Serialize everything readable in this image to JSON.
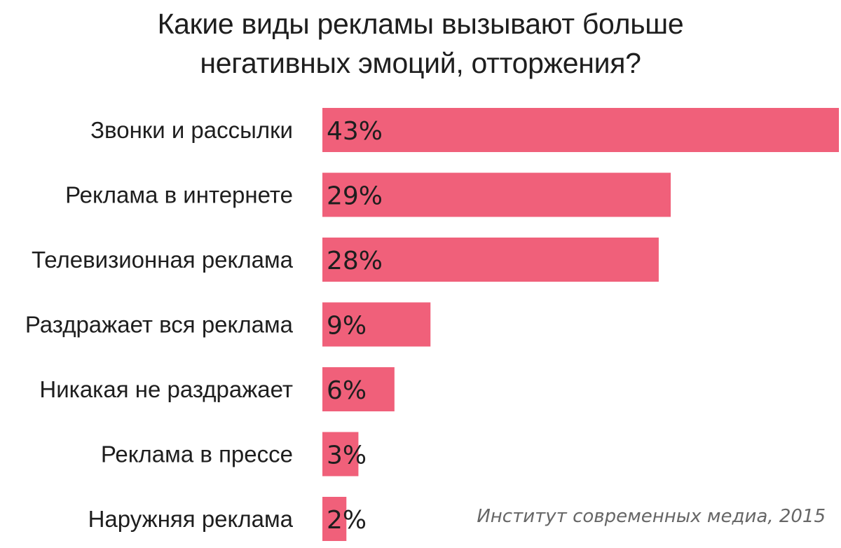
{
  "colors": {
    "bar": "#f0607a",
    "text": "#1e1e1e",
    "source": "#666666"
  },
  "source": "Институт современных медиа, 2015",
  "chart_data": {
    "type": "bar",
    "orientation": "horizontal",
    "title_lines": [
      "Какие виды рекламы вызывают больше",
      "негативных эмоций, отторжения?"
    ],
    "categories": [
      "Звонки и рассылки",
      "Реклама в интернете",
      "Телевизионная реклама",
      "Раздражает вся реклама",
      "Никакая не раздражает",
      "Реклама в прессе",
      "Наружняя реклама"
    ],
    "values": [
      43,
      29,
      28,
      9,
      6,
      3,
      2
    ],
    "value_labels": [
      "43%",
      "29%",
      "28%",
      "9%",
      "6%",
      "3%",
      "2%"
    ],
    "unit": "%",
    "xlim": [
      0,
      43
    ],
    "grid": false,
    "legend": "none"
  }
}
